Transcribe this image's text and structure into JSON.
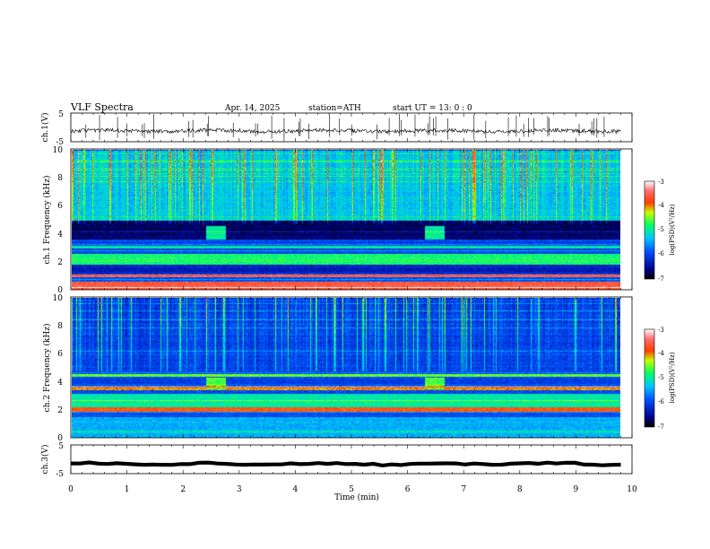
{
  "header": {
    "title": "VLF Spectra",
    "date": "Apr. 14, 2025",
    "station": "station=ATH",
    "start_ut": "start UT = 13: 0 : 0"
  },
  "chart_data": [
    {
      "type": "line",
      "panel": "ch1",
      "ylabel": "ch.1(V)",
      "ylim": [
        -5,
        5
      ],
      "yticks": [
        "5",
        "-5"
      ],
      "xlim": [
        0,
        10
      ],
      "baseline": -1.2,
      "noise_amplitude": 0.7,
      "spikes_present": true,
      "color": "#000000"
    },
    {
      "type": "heatmap",
      "panel": "ch1",
      "ylabel": "ch.1 Frequency (kHz)",
      "ylim": [
        0,
        10
      ],
      "yticks": [
        "0",
        "2",
        "4",
        "6",
        "8",
        "10"
      ],
      "xlim": [
        0,
        9.8
      ],
      "colorbar": {
        "label": "log(PSD)(V²/Hz)",
        "range": [
          -7,
          -3
        ],
        "ticks": [
          "-3",
          "-4",
          "-5",
          "-6",
          "-7"
        ]
      },
      "bands_khz": [
        {
          "freq_range": [
            0,
            0.6
          ],
          "level": -3.6
        },
        {
          "freq_range": [
            0.9,
            1.1
          ],
          "level": -3.5
        },
        {
          "freq_range": [
            1.2,
            1.8
          ],
          "level": -6.3
        },
        {
          "freq_range": [
            1.8,
            2.6
          ],
          "level": -4.8
        },
        {
          "freq_range": [
            3.0,
            3.2
          ],
          "level": -5.0
        },
        {
          "freq_range": [
            3.6,
            5.0
          ],
          "level": -6.7
        },
        {
          "freq_range": [
            5.0,
            10.0
          ],
          "level": -5.3
        }
      ],
      "patches": [
        {
          "time_min": [
            2.4,
            2.75
          ],
          "freq_khz": [
            3.6,
            4.6
          ],
          "level": -5.0
        },
        {
          "time_min": [
            6.3,
            6.65
          ],
          "freq_khz": [
            3.6,
            4.6
          ],
          "level": -5.0
        }
      ]
    },
    {
      "type": "heatmap",
      "panel": "ch2",
      "ylabel": "ch.2 Frequency (kHz)",
      "ylim": [
        0,
        10
      ],
      "yticks": [
        "0",
        "2",
        "4",
        "6",
        "8",
        "10"
      ],
      "xlim": [
        0,
        9.8
      ],
      "colorbar": {
        "label": "log(PSD)(V²/Hz)",
        "range": [
          -7,
          -3
        ],
        "ticks": [
          "-3",
          "-4",
          "-5",
          "-6",
          "-7"
        ]
      },
      "bands_khz": [
        {
          "freq_range": [
            0,
            1.5
          ],
          "level": -5.4
        },
        {
          "freq_range": [
            1.9,
            2.2
          ],
          "level": -3.8
        },
        {
          "freq_range": [
            2.2,
            3.2
          ],
          "level": -5.0
        },
        {
          "freq_range": [
            3.4,
            3.7
          ],
          "level": -4.0
        },
        {
          "freq_range": [
            4.4,
            4.6
          ],
          "level": -4.5
        },
        {
          "freq_range": [
            4.8,
            10.0
          ],
          "level": -6.0
        }
      ],
      "patches": [
        {
          "time_min": [
            2.4,
            2.75
          ],
          "freq_khz": [
            3.5,
            4.3
          ],
          "level": -4.6
        },
        {
          "time_min": [
            6.3,
            6.65
          ],
          "freq_khz": [
            3.5,
            4.3
          ],
          "level": -4.6
        }
      ]
    },
    {
      "type": "line",
      "panel": "ch3",
      "ylabel": "ch.3(V)",
      "ylim": [
        -5,
        5
      ],
      "yticks": [
        "5",
        "-5"
      ],
      "xlim": [
        0,
        10
      ],
      "baseline": -1.6,
      "noise_amplitude": 0.3,
      "color": "#000000"
    }
  ],
  "x_axis": {
    "label": "Time (min)",
    "ticks": [
      "0",
      "1",
      "2",
      "3",
      "4",
      "5",
      "6",
      "7",
      "8",
      "9",
      "10"
    ]
  }
}
